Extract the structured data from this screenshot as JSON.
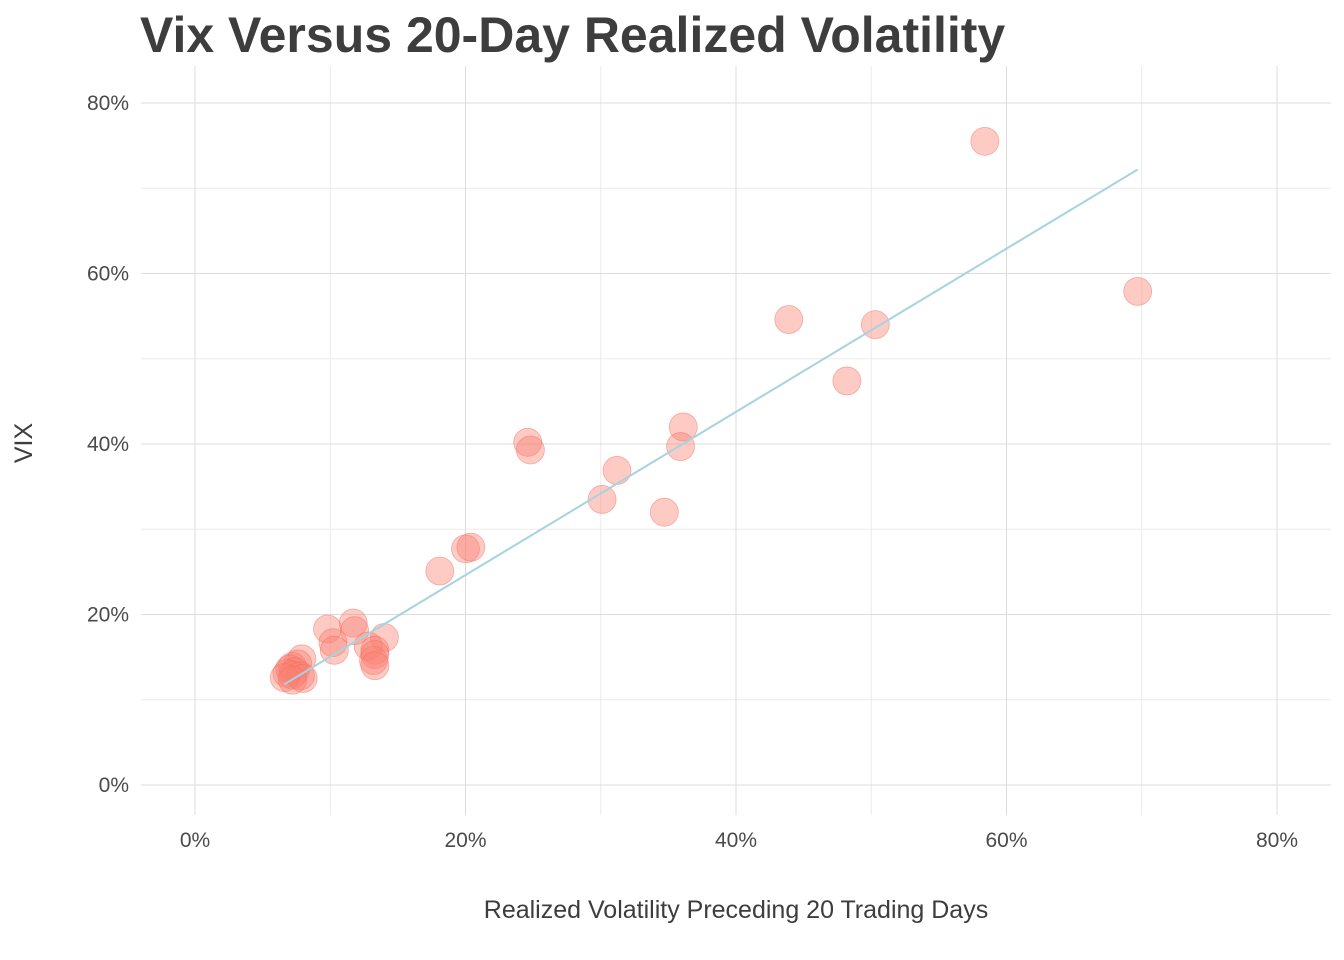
{
  "chart_data": {
    "type": "scatter",
    "title": "Vix Versus 20-Day Realized Volatility",
    "xlabel": "Realized Volatility Preceding 20 Trading Days",
    "ylabel": "VIX",
    "xlim": [
      -0.04,
      0.84
    ],
    "ylim": [
      -0.04,
      0.83
    ],
    "x_ticks": [
      0,
      0.2,
      0.4,
      0.6,
      0.8
    ],
    "x_tick_labels": [
      "0%",
      "20%",
      "40%",
      "60%",
      "80%"
    ],
    "y_ticks": [
      0,
      0.2,
      0.4,
      0.6,
      0.8
    ],
    "y_tick_labels": [
      "0%",
      "20%",
      "40%",
      "60%",
      "80%"
    ],
    "grid": true,
    "point_color": "#fa8072",
    "trend_color": "#a7d3e0",
    "points": [
      {
        "x": 0.584,
        "y": 0.755
      },
      {
        "x": 0.697,
        "y": 0.579
      },
      {
        "x": 0.439,
        "y": 0.546
      },
      {
        "x": 0.503,
        "y": 0.54
      },
      {
        "x": 0.482,
        "y": 0.474
      },
      {
        "x": 0.361,
        "y": 0.42
      },
      {
        "x": 0.359,
        "y": 0.397
      },
      {
        "x": 0.246,
        "y": 0.402
      },
      {
        "x": 0.248,
        "y": 0.393
      },
      {
        "x": 0.312,
        "y": 0.369
      },
      {
        "x": 0.301,
        "y": 0.335
      },
      {
        "x": 0.347,
        "y": 0.32
      },
      {
        "x": 0.2,
        "y": 0.277
      },
      {
        "x": 0.204,
        "y": 0.279
      },
      {
        "x": 0.181,
        "y": 0.251
      },
      {
        "x": 0.117,
        "y": 0.19
      },
      {
        "x": 0.098,
        "y": 0.183
      },
      {
        "x": 0.118,
        "y": 0.181
      },
      {
        "x": 0.14,
        "y": 0.173
      },
      {
        "x": 0.128,
        "y": 0.163
      },
      {
        "x": 0.102,
        "y": 0.167
      },
      {
        "x": 0.103,
        "y": 0.158
      },
      {
        "x": 0.133,
        "y": 0.158
      },
      {
        "x": 0.133,
        "y": 0.153
      },
      {
        "x": 0.132,
        "y": 0.146
      },
      {
        "x": 0.133,
        "y": 0.14
      },
      {
        "x": 0.079,
        "y": 0.148
      },
      {
        "x": 0.076,
        "y": 0.142
      },
      {
        "x": 0.072,
        "y": 0.139
      },
      {
        "x": 0.07,
        "y": 0.136
      },
      {
        "x": 0.074,
        "y": 0.133
      },
      {
        "x": 0.068,
        "y": 0.131
      },
      {
        "x": 0.072,
        "y": 0.129
      },
      {
        "x": 0.078,
        "y": 0.128
      },
      {
        "x": 0.08,
        "y": 0.125
      },
      {
        "x": 0.066,
        "y": 0.126
      },
      {
        "x": 0.072,
        "y": 0.123
      }
    ],
    "trend_line": {
      "x": [
        0.066,
        0.697
      ],
      "y": [
        0.118,
        0.722
      ]
    }
  }
}
